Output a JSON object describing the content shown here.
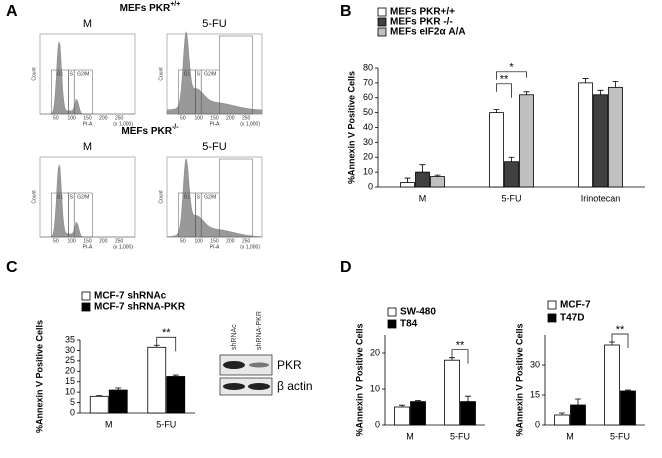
{
  "panel_labels": [
    "A",
    "B",
    "C",
    "D"
  ],
  "flow": {
    "groups": [
      {
        "title": "MEFs PKR",
        "title_sup": "+/+",
        "conditions": [
          "M",
          "5-FU"
        ]
      },
      {
        "title": "MEFs PKR",
        "title_sup": "-/-",
        "conditions": [
          "M",
          "5-FU"
        ]
      }
    ],
    "gates": [
      "G1",
      "S",
      "G2/M"
    ],
    "y_label": "Count",
    "x_label": "PI-A",
    "x_ticks": [
      "50",
      "100",
      "150",
      "200",
      "250"
    ],
    "x_unit": "(x 1,000)"
  },
  "blot": {
    "lanes": [
      "shRNAc",
      "shRNA-PKR"
    ],
    "rows": [
      "PKR",
      "β actin"
    ]
  },
  "chart_data": [
    {
      "type": "bar",
      "y_label": "%Annexin V Positive Cells",
      "categories": [
        "M",
        "5-FU",
        "Irinotecan"
      ],
      "series": [
        {
          "name": "MEFs PKR+/+",
          "color": "#ffffff",
          "values": [
            3,
            50,
            70
          ],
          "errors": [
            3,
            2,
            3
          ]
        },
        {
          "name": "MEFs PKR -/-",
          "color": "#404040",
          "values": [
            10,
            17,
            62
          ],
          "errors": [
            5,
            3,
            3
          ]
        },
        {
          "name": "MEFs eIF2α A/A",
          "color": "#c0c0c0",
          "values": [
            7,
            62,
            67
          ],
          "errors": [
            1,
            2,
            4
          ]
        }
      ],
      "ylim": [
        0,
        80
      ],
      "yticks": [
        0,
        10,
        20,
        30,
        40,
        50,
        60,
        70,
        80
      ],
      "annotations": [
        "**",
        "*"
      ]
    },
    {
      "type": "bar",
      "y_label": "%Annexin V Positive Cells",
      "categories": [
        "M",
        "5-FU"
      ],
      "series": [
        {
          "name": "MCF-7 shRNAc",
          "color": "#ffffff",
          "values": [
            8,
            31.5
          ],
          "errors": [
            0.3,
            1
          ]
        },
        {
          "name": "MCF-7 shRNA-PKR",
          "color": "#000000",
          "values": [
            11,
            17.5
          ],
          "errors": [
            1,
            0.7
          ]
        }
      ],
      "ylim": [
        0,
        35
      ],
      "yticks": [
        0,
        5,
        10,
        15,
        20,
        25,
        30,
        35
      ],
      "annotations": [
        "**"
      ]
    },
    {
      "type": "bar",
      "y_label": "%Annexin V Positive Cells",
      "categories": [
        "M",
        "5-FU"
      ],
      "series": [
        {
          "name": "SW-480",
          "color": "#ffffff",
          "values": [
            5,
            18
          ],
          "errors": [
            0.5,
            0.7
          ]
        },
        {
          "name": "T84",
          "color": "#000000",
          "values": [
            6.5,
            6.5
          ],
          "errors": [
            0.3,
            1.5
          ]
        }
      ],
      "ylim": [
        0,
        25
      ],
      "yticks": [
        0,
        10,
        20
      ],
      "annotations": [
        "**"
      ]
    },
    {
      "type": "bar",
      "y_label": "%Annexin V Positive Cells",
      "categories": [
        "M",
        "5-FU"
      ],
      "series": [
        {
          "name": "MCF-7",
          "color": "#ffffff",
          "values": [
            5,
            40
          ],
          "errors": [
            1,
            1.5
          ]
        },
        {
          "name": "T47D",
          "color": "#000000",
          "values": [
            10,
            17
          ],
          "errors": [
            3,
            0.5
          ]
        }
      ],
      "ylim": [
        0,
        45
      ],
      "yticks": [
        0,
        15,
        30
      ],
      "annotations": [
        "**"
      ]
    }
  ]
}
